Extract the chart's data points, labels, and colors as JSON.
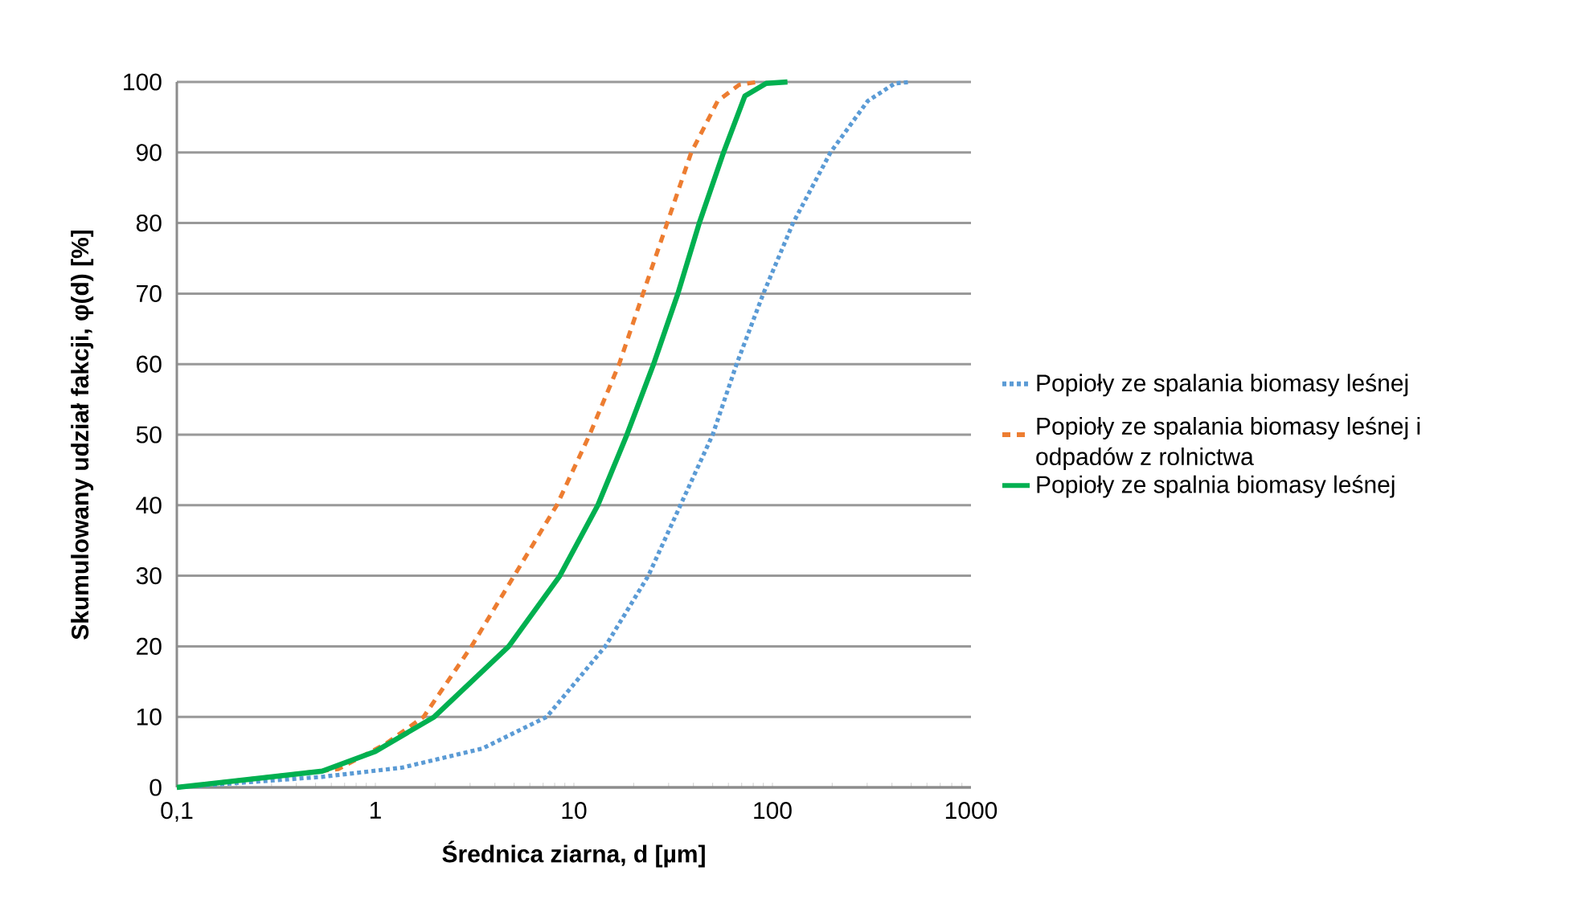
{
  "chart_data": {
    "type": "line",
    "xlabel": "Średnica ziarna, d [µm]",
    "ylabel": "Skumulowany udział fakcji,  φ(d) [%]",
    "log": "x",
    "grid": "y",
    "legend": "right",
    "xlim": [
      0.1,
      1000
    ],
    "xticks": [
      {
        "value": 0.1,
        "label": "0,1"
      },
      1,
      10,
      100,
      1000
    ],
    "ylim": [
      0,
      100
    ],
    "yticks": [
      0,
      10,
      20,
      30,
      40,
      50,
      60,
      70,
      80,
      90,
      100
    ],
    "series": [
      {
        "name": "Popioły ze spalania biomasy leśnej",
        "color": "#5b9bd5",
        "line_style": "dotted",
        "x": [
          0.1,
          0.54,
          1.36,
          3.45,
          7.3,
          14.4,
          23.7,
          34.4,
          50,
          66,
          90,
          127,
          196,
          302,
          414,
          499
        ],
        "values": [
          0,
          1.5,
          2.8,
          5.5,
          10,
          20,
          30,
          40,
          50,
          60,
          70,
          80,
          90,
          97.3,
          99.8,
          100
        ]
      },
      {
        "name": "Popioły ze spalania biomasy leśnej i odpadów z rolnictwa",
        "color": "#ed7d31",
        "line_style": "dashed",
        "x": [
          0.1,
          0.65,
          1.13,
          1.75,
          3.05,
          5,
          8.2,
          12,
          16.9,
          22.3,
          29.5,
          39,
          53,
          68,
          84.7
        ],
        "values": [
          0,
          2.6,
          6.2,
          10,
          20,
          30,
          40,
          50,
          60,
          70,
          80,
          90,
          97.3,
          99.6,
          100
        ]
      },
      {
        "name": "Popioły ze spalnia biomasy leśnej",
        "color": "#00b050",
        "line_style": "solid",
        "x": [
          0.1,
          0.54,
          1,
          1.98,
          4.7,
          8.5,
          13.2,
          18.5,
          25.2,
          33.4,
          42.8,
          56.7,
          72.6,
          93,
          119
        ],
        "values": [
          0,
          2.3,
          5.1,
          10,
          20,
          30,
          40,
          50,
          60,
          70,
          80,
          90,
          98,
          99.8,
          100
        ]
      }
    ]
  }
}
